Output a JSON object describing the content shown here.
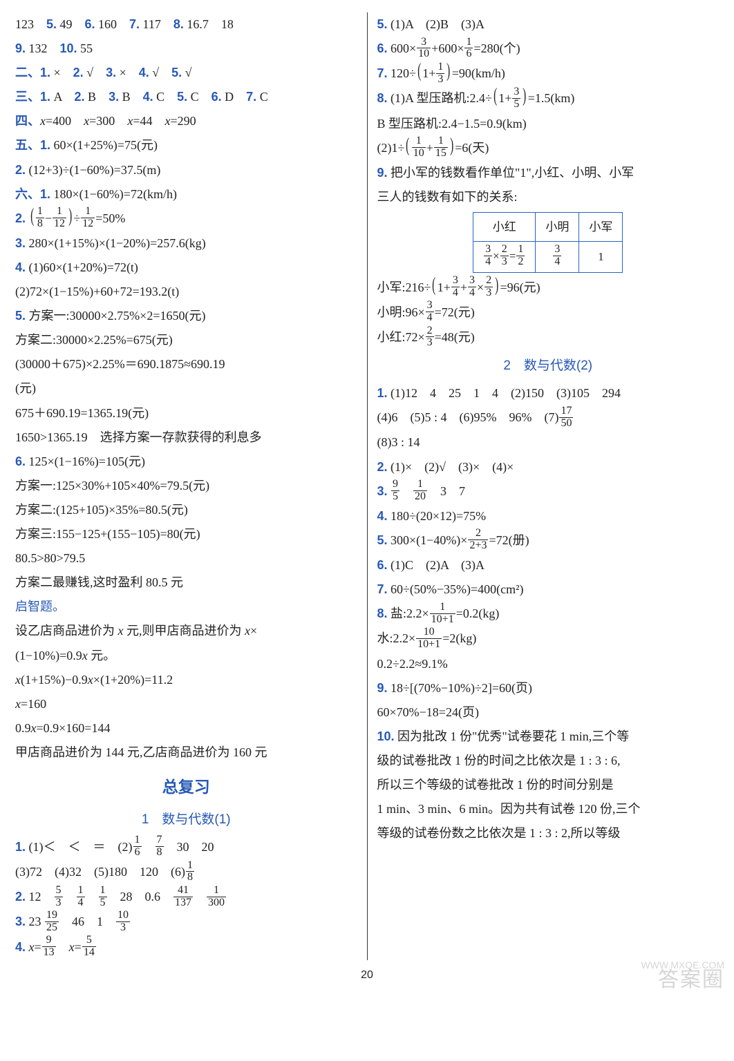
{
  "page_number": "20",
  "watermark_main": "答案圈",
  "watermark_sub": "WWW.MXQE.COM",
  "left": {
    "l1": "123　5. 49　6. 160　7. 117　8. 16.7　18",
    "l2": "9. 132　10. 55",
    "l3_pre": "二、",
    "l3_1": "1.",
    "l3_2": "2.",
    "l3_3": "3.",
    "l3_4": "4.",
    "l3_5": "5.",
    "l3_a1": "×",
    "l3_a2": "√",
    "l3_a3": "×",
    "l3_a4": "√",
    "l3_a5": "√",
    "l4_pre": "三、",
    "l4_1": "1.",
    "l4_2": "2.",
    "l4_3": "3.",
    "l4_4": "4.",
    "l4_5": "5.",
    "l4_6": "6.",
    "l4_7": "7.",
    "l4_a1": "A",
    "l4_a2": "B",
    "l4_a3": "B",
    "l4_a4": "C",
    "l4_a5": "C",
    "l4_a6": "D",
    "l4_a7": "C",
    "l5_pre": "四、",
    "l5": "x=400　x=300　x=44　x=290",
    "l6_pre": "五、",
    "l6_n": "1.",
    "l6": "60×(1+25%)=75(元)",
    "l7_n": "2.",
    "l7": "(12+3)÷(1−60%)=37.5(m)",
    "l8_pre": "六、",
    "l8_n": "1.",
    "l8": "180×(1−60%)=72(km/h)",
    "l9_n": "2.",
    "l9_f1n": "1",
    "l9_f1d": "8",
    "l9_f2n": "1",
    "l9_f2d": "12",
    "l9_f3n": "1",
    "l9_f3d": "12",
    "l9_tail": "=50%",
    "l10_n": "3.",
    "l10": "280×(1+15%)×(1−20%)=257.6(kg)",
    "l11_n": "4.",
    "l11": "(1)60×(1+20%)=72(t)",
    "l12": "(2)72×(1−15%)+60+72=193.2(t)",
    "l13_n": "5.",
    "l13": "方案一:30000×2.75%×2=1650(元)",
    "l14": "方案二:30000×2.25%=675(元)",
    "l15": "(30000＋675)×2.25%＝690.1875≈690.19",
    "l16": "(元)",
    "l17": "675＋690.19=1365.19(元)",
    "l18": "1650>1365.19　选择方案一存款获得的利息多",
    "l19_n": "6.",
    "l19": "125×(1−16%)=105(元)",
    "l20": "方案一:125×30%+105×40%=79.5(元)",
    "l21": "方案二:(125+105)×35%=80.5(元)",
    "l22": "方案三:155−125+(155−105)=80(元)",
    "l23": "80.5>80>79.5",
    "l24": "方案二最赚钱,这时盈利 80.5 元",
    "l25": "启智题。",
    "l26": "设乙店商品进价为 x 元,则甲店商品进价为 x×",
    "l27": "(1−10%)=0.9x 元。",
    "l28": "x(1+15%)−0.9x×(1+20%)=11.2",
    "l29": "x=160",
    "l30": "0.9x=0.9×160=144",
    "l31": "甲店商品进价为 144 元,乙店商品进价为 160 元",
    "h1": "总复习",
    "h2": "1　数与代数(1)",
    "r1_n": "1.",
    "r1a": "(1)＜　＜　＝　(2)",
    "r1_f1n": "1",
    "r1_f1d": "6",
    "r1_f2n": "7",
    "r1_f2d": "8",
    "r1b": "30　20",
    "r2a": "(3)72　(4)32　(5)180　120　(6)",
    "r2_fn": "1",
    "r2_fd": "8",
    "r3_n": "2.",
    "r3a": "12",
    "r3_f1n": "5",
    "r3_f1d": "3",
    "r3_f2n": "1",
    "r3_f2d": "4",
    "r3_f3n": "1",
    "r3_f3d": "5",
    "r3b": "28　0.6",
    "r3_f4n": "41",
    "r3_f4d": "137",
    "r3_f5n": "1",
    "r3_f5d": "300",
    "r4_n": "3.",
    "r4a": "23",
    "r4_f1n": "19",
    "r4_f1d": "25",
    "r4b": "46　1",
    "r4_f2n": "10",
    "r4_f2d": "3",
    "r5_n": "4.",
    "r5a": "x=",
    "r5_f1n": "9",
    "r5_f1d": "13",
    "r5b": "x=",
    "r5_f2n": "5",
    "r5_f2d": "14"
  },
  "right": {
    "s1_n": "5.",
    "s1": "(1)A　(2)B　(3)A",
    "s2_n": "6.",
    "s2_f1n": "3",
    "s2_f1d": "10",
    "s2_f2n": "1",
    "s2_f2d": "6",
    "s2_tail": "=280(个)",
    "s2_pre": "600×",
    "s2_mid": "+600×",
    "s3_n": "7.",
    "s3_pre": "120÷",
    "s3_fn": "1",
    "s3_fd": "3",
    "s3_tail": "=90(km/h)",
    "s4_n": "8.",
    "s4_pre": "(1)A 型压路机:2.4÷",
    "s4_fn": "3",
    "s4_fd": "5",
    "s4_tail": "=1.5(km)",
    "s5": "B 型压路机:2.4−1.5=0.9(km)",
    "s6_pre": "(2)1÷",
    "s6_f1n": "1",
    "s6_f1d": "10",
    "s6_f2n": "1",
    "s6_f2d": "15",
    "s6_tail": "=6(天)",
    "s7_n": "9.",
    "s7": "把小军的钱数看作单位\"1\",小红、小明、小军",
    "s8": "三人的钱数有如下的关系:",
    "th1": "小红",
    "th2": "小明",
    "th3": "小军",
    "t_f1n": "3",
    "t_f1d": "4",
    "t_f2n": "2",
    "t_f2d": "3",
    "t_f3n": "1",
    "t_f3d": "2",
    "t_f4n": "3",
    "t_f4d": "4",
    "t_v": "1",
    "s9_pre": "小军:216÷",
    "s9_f1n": "3",
    "s9_f1d": "4",
    "s9_f2n": "3",
    "s9_f2d": "4",
    "s9_f3n": "2",
    "s9_f3d": "3",
    "s9_tail": "=96(元)",
    "s10_pre": "小明:96×",
    "s10_fn": "3",
    "s10_fd": "4",
    "s10_tail": "=72(元)",
    "s11_pre": "小红:72×",
    "s11_fn": "2",
    "s11_fd": "3",
    "s11_tail": "=48(元)",
    "h3": "2　数与代数(2)",
    "u1_n": "1.",
    "u1": "(1)12　4　25　1　4　(2)150　(3)105　294",
    "u2_pre": "(4)6　(5)5 : 4　(6)95%　96%　(7)",
    "u2_fn": "17",
    "u2_fd": "50",
    "u3": "(8)3 : 14",
    "u4_n": "2.",
    "u4": "(1)×　(2)√　(3)×　(4)×",
    "u5_n": "3.",
    "u5_f1n": "9",
    "u5_f1d": "5",
    "u5_f2n": "1",
    "u5_f2d": "20",
    "u5_tail": "3　7",
    "u6_n": "4.",
    "u6": "180÷(20×12)=75%",
    "u7_n": "5.",
    "u7_pre": "300×(1−40%)×",
    "u7_fn": "2",
    "u7_fd": "2+3",
    "u7_tail": "=72(册)",
    "u8_n": "6.",
    "u8": "(1)C　(2)A　(3)A",
    "u9_n": "7.",
    "u9": "60÷(50%−35%)=400(cm²)",
    "u10_n": "8.",
    "u10_pre": "盐:2.2×",
    "u10_fn": "1",
    "u10_fd": "10+1",
    "u10_tail": "=0.2(kg)",
    "u11_pre": "水:2.2×",
    "u11_fn": "10",
    "u11_fd": "10+1",
    "u11_tail": "=2(kg)",
    "u12": "0.2÷2.2≈9.1%",
    "u13_n": "9.",
    "u13": "18÷[(70%−10%)÷2]=60(页)",
    "u14": "60×70%−18=24(页)",
    "u15_n": "10.",
    "u15": "因为批改 1 份\"优秀\"试卷要花 1 min,三个等",
    "u16": "级的试卷批改 1 份的时间之比依次是 1 : 3 : 6,",
    "u17": "所以三个等级的试卷批改 1 份的时间分别是",
    "u18": "1 min、3 min、6 min。因为共有试卷 120 份,三个",
    "u19": "等级的试卷份数之比依次是 1 : 3 : 2,所以等级"
  }
}
